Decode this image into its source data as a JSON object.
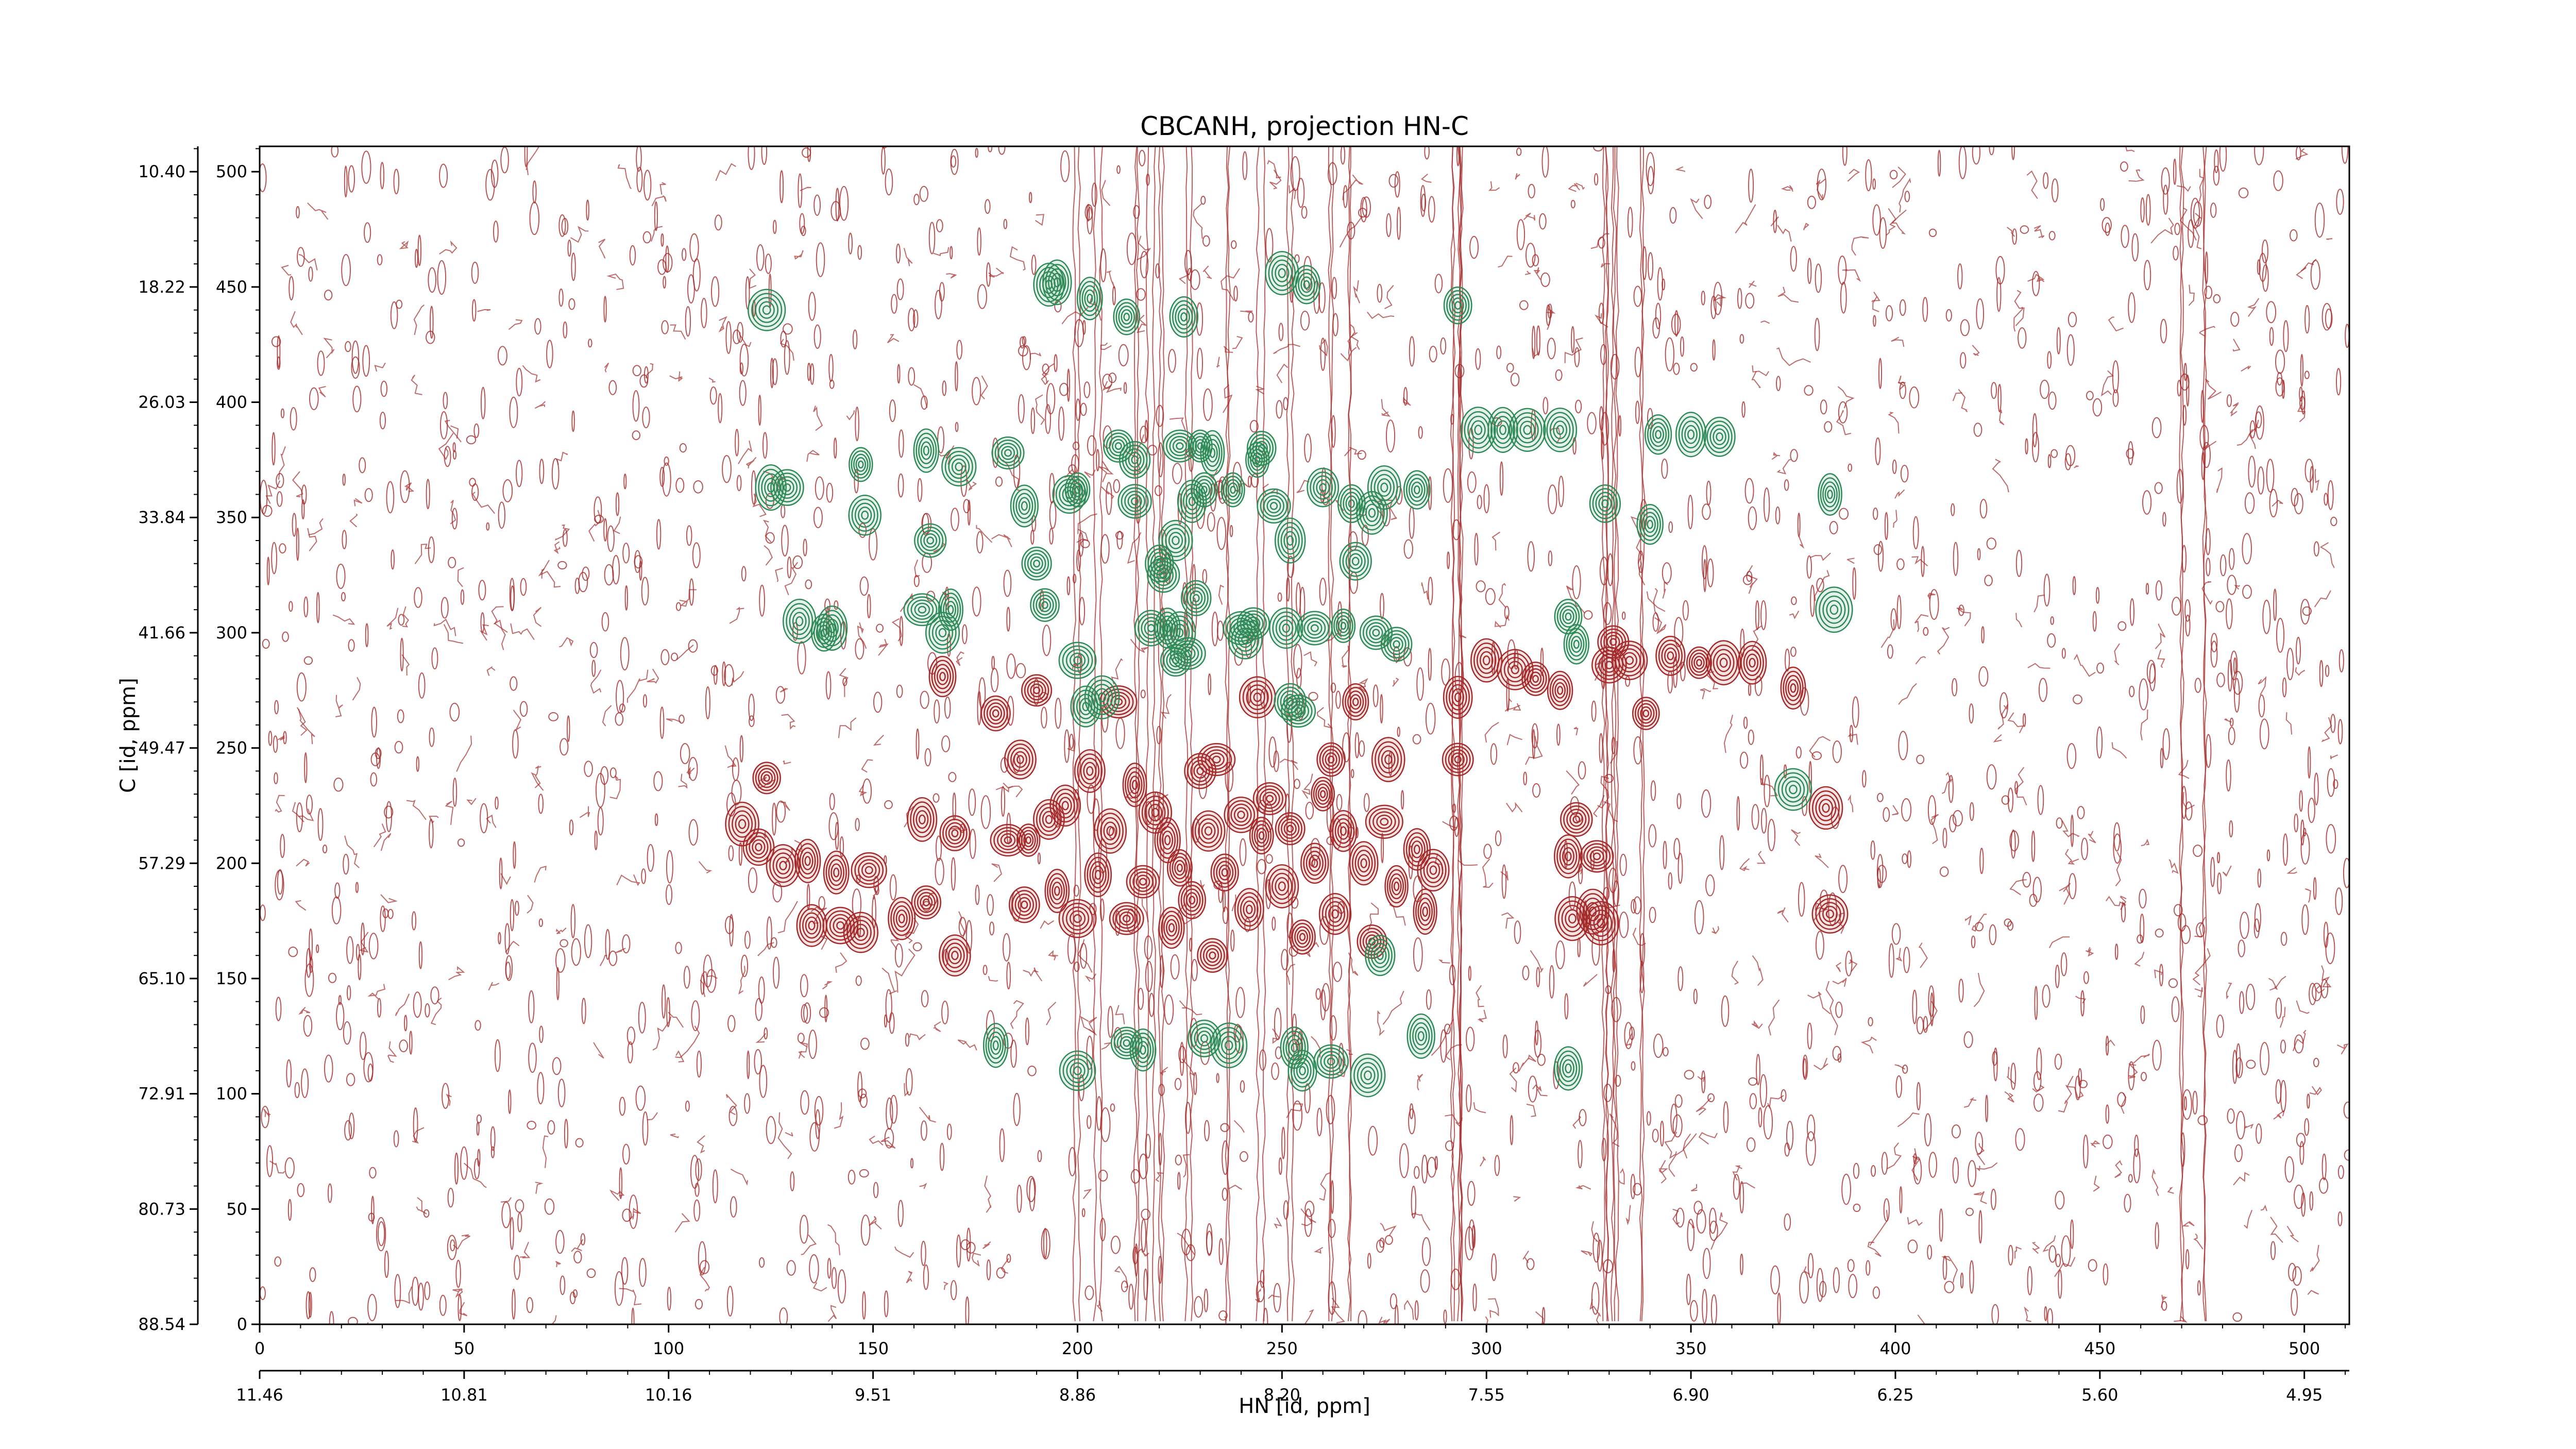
{
  "chart_data": {
    "type": "heatmap",
    "subtype": "2D NMR contour plot",
    "title": "CBCANH, projection HN-C",
    "xlabel": "HN [id, ppm]",
    "ylabel": "C [id, ppm]",
    "xlim_points": [
      0,
      511
    ],
    "ylim_points": [
      0,
      511
    ],
    "x_point_ticks": [
      "0",
      "50",
      "100",
      "150",
      "200",
      "250",
      "300",
      "350",
      "400",
      "450",
      "500"
    ],
    "x_ppm_ticks": [
      "11.46",
      "10.81",
      "10.16",
      "9.51",
      "8.86",
      "8.20",
      "7.55",
      "6.90",
      "6.25",
      "5.60",
      "4.95"
    ],
    "y_point_ticks": [
      "0",
      "50",
      "100",
      "150",
      "200",
      "250",
      "300",
      "350",
      "400",
      "450",
      "500"
    ],
    "y_ppm_ticks": [
      "88.54",
      "80.73",
      "72.91",
      "65.10",
      "57.29",
      "49.47",
      "41.66",
      "33.84",
      "26.03",
      "18.22",
      "10.40"
    ],
    "colors": {
      "positive": "#a52a2a",
      "negative": "#2e8b57",
      "axis": "#000000"
    },
    "noise_contours": "dense low-level positive contours across full spectrum",
    "peaks_negative": [
      [
        124,
        440
      ],
      [
        125,
        363
      ],
      [
        129,
        363
      ],
      [
        132,
        305
      ],
      [
        138,
        300
      ],
      [
        140,
        302
      ],
      [
        147,
        373
      ],
      [
        148,
        351
      ],
      [
        162,
        310
      ],
      [
        163,
        379
      ],
      [
        164,
        340
      ],
      [
        167,
        300
      ],
      [
        169,
        310
      ],
      [
        171,
        372
      ],
      [
        180,
        121
      ],
      [
        183,
        378
      ],
      [
        187,
        355
      ],
      [
        190,
        330
      ],
      [
        192,
        312
      ],
      [
        193,
        451
      ],
      [
        195,
        452
      ],
      [
        198,
        360
      ],
      [
        200,
        362
      ],
      [
        200,
        110
      ],
      [
        200,
        288
      ],
      [
        202,
        268
      ],
      [
        203,
        445
      ],
      [
        206,
        272
      ],
      [
        210,
        381
      ],
      [
        212,
        437
      ],
      [
        212,
        122
      ],
      [
        214,
        357
      ],
      [
        214,
        375
      ],
      [
        216,
        119
      ],
      [
        218,
        302
      ],
      [
        220,
        330
      ],
      [
        221,
        325
      ],
      [
        222,
        302
      ],
      [
        224,
        340
      ],
      [
        225,
        381
      ],
      [
        225,
        300
      ],
      [
        226,
        437
      ],
      [
        227,
        291
      ],
      [
        228,
        357
      ],
      [
        229,
        315
      ],
      [
        230,
        381
      ],
      [
        231,
        124
      ],
      [
        233,
        378
      ],
      [
        237,
        121
      ],
      [
        238,
        362
      ],
      [
        240,
        302
      ],
      [
        241,
        297
      ],
      [
        243,
        304
      ],
      [
        244,
        375
      ],
      [
        245,
        380
      ],
      [
        248,
        355
      ],
      [
        250,
        456
      ],
      [
        251,
        302
      ],
      [
        252,
        270
      ],
      [
        252,
        340
      ],
      [
        253,
        120
      ],
      [
        254,
        266
      ],
      [
        255,
        110
      ],
      [
        256,
        451
      ],
      [
        258,
        302
      ],
      [
        260,
        363
      ],
      [
        262,
        114
      ],
      [
        265,
        303
      ],
      [
        267,
        356
      ],
      [
        268,
        331
      ],
      [
        271,
        108
      ],
      [
        272,
        352
      ],
      [
        273,
        300
      ],
      [
        275,
        363
      ],
      [
        278,
        295
      ],
      [
        283,
        362
      ],
      [
        284,
        125
      ],
      [
        293,
        442
      ],
      [
        298,
        388
      ],
      [
        304,
        388
      ],
      [
        310,
        388
      ],
      [
        318,
        388
      ],
      [
        320,
        307
      ],
      [
        320,
        111
      ],
      [
        322,
        295
      ],
      [
        329,
        356
      ],
      [
        340,
        347
      ],
      [
        342,
        386
      ],
      [
        350,
        386
      ],
      [
        357,
        385
      ],
      [
        375,
        232
      ],
      [
        384,
        360
      ],
      [
        385,
        310
      ],
      [
        274,
        160
      ],
      [
        231,
        362
      ],
      [
        224,
        288
      ]
    ],
    "peaks_positive": [
      [
        124,
        237
      ],
      [
        118,
        217
      ],
      [
        122,
        207
      ],
      [
        128,
        199
      ],
      [
        134,
        201
      ],
      [
        135,
        173
      ],
      [
        141,
        196
      ],
      [
        142,
        173
      ],
      [
        147,
        170
      ],
      [
        149,
        197
      ],
      [
        157,
        176
      ],
      [
        162,
        219
      ],
      [
        163,
        183
      ],
      [
        167,
        281
      ],
      [
        170,
        213
      ],
      [
        170,
        160
      ],
      [
        180,
        265
      ],
      [
        183,
        210
      ],
      [
        186,
        245
      ],
      [
        187,
        182
      ],
      [
        188,
        210
      ],
      [
        190,
        275
      ],
      [
        193,
        219
      ],
      [
        195,
        188
      ],
      [
        197,
        225
      ],
      [
        200,
        176
      ],
      [
        203,
        240
      ],
      [
        205,
        195
      ],
      [
        208,
        214
      ],
      [
        210,
        270
      ],
      [
        212,
        176
      ],
      [
        214,
        234
      ],
      [
        216,
        192
      ],
      [
        219,
        222
      ],
      [
        222,
        210
      ],
      [
        223,
        172
      ],
      [
        225,
        198
      ],
      [
        228,
        184
      ],
      [
        230,
        240
      ],
      [
        232,
        214
      ],
      [
        233,
        160
      ],
      [
        236,
        196
      ],
      [
        240,
        221
      ],
      [
        242,
        180
      ],
      [
        244,
        272
      ],
      [
        245,
        212
      ],
      [
        247,
        228
      ],
      [
        250,
        190
      ],
      [
        252,
        215
      ],
      [
        255,
        168
      ],
      [
        258,
        200
      ],
      [
        260,
        230
      ],
      [
        263,
        178
      ],
      [
        265,
        214
      ],
      [
        268,
        270
      ],
      [
        270,
        200
      ],
      [
        272,
        166
      ],
      [
        275,
        218
      ],
      [
        278,
        190
      ],
      [
        283,
        206
      ],
      [
        285,
        179
      ],
      [
        293,
        272
      ],
      [
        293,
        245
      ],
      [
        300,
        288
      ],
      [
        307,
        284
      ],
      [
        312,
        280
      ],
      [
        318,
        275
      ],
      [
        320,
        203
      ],
      [
        322,
        219
      ],
      [
        321,
        176
      ],
      [
        326,
        179
      ],
      [
        327,
        203
      ],
      [
        328,
        174
      ],
      [
        330,
        286
      ],
      [
        331,
        296
      ],
      [
        335,
        288
      ],
      [
        339,
        265
      ],
      [
        345,
        290
      ],
      [
        352,
        287
      ],
      [
        358,
        287
      ],
      [
        365,
        287
      ],
      [
        375,
        276
      ],
      [
        383,
        224
      ],
      [
        384,
        178
      ],
      [
        234,
        245
      ],
      [
        262,
        245
      ],
      [
        276,
        245
      ],
      [
        287,
        197
      ]
    ]
  }
}
